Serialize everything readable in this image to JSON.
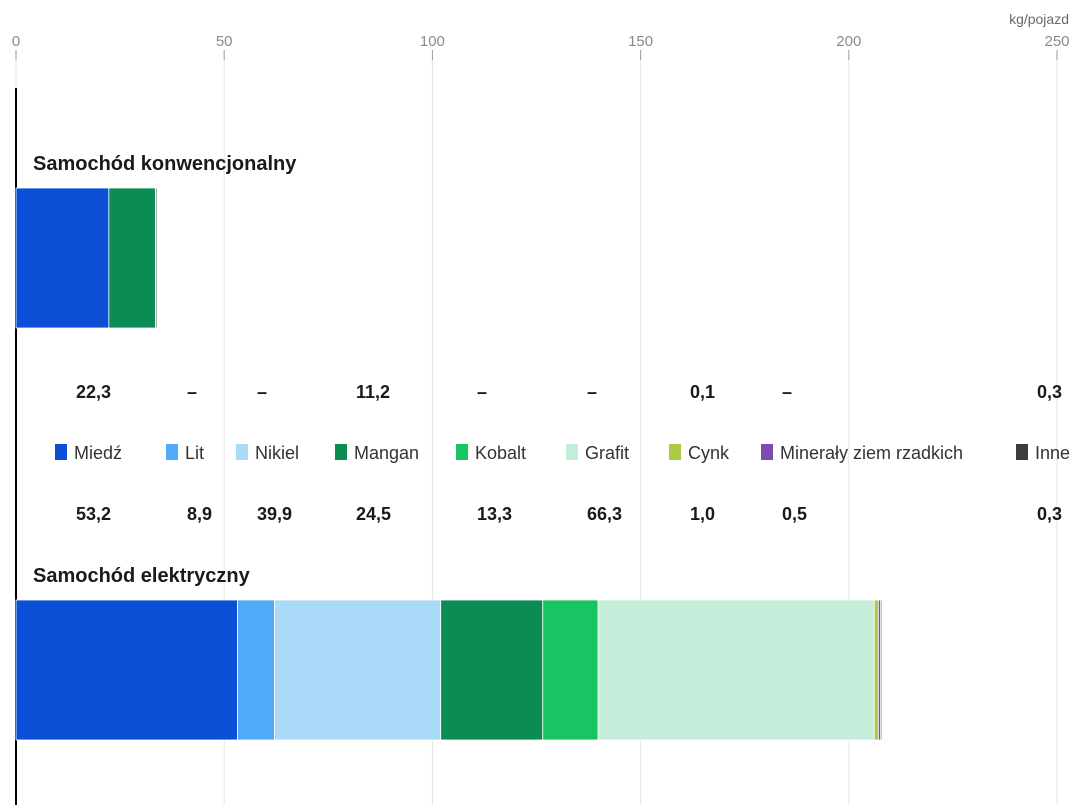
{
  "chart_data": {
    "type": "bar",
    "orientation": "horizontal",
    "stacked": true,
    "unit": "kg/pojazd",
    "xlim": [
      0,
      250
    ],
    "x_ticks": [
      "0",
      "50",
      "100",
      "150",
      "200",
      "250"
    ],
    "grid": true,
    "legend_position": "middle",
    "categories": [
      "Samochód konwencjonalny",
      "Samochód elektryczny"
    ],
    "series": [
      {
        "name": "Miedź",
        "color": "#0b50d6",
        "values": [
          22.3,
          53.2
        ],
        "labels": [
          "22,3",
          "53,2"
        ]
      },
      {
        "name": "Lit",
        "color": "#4fabf7",
        "values": [
          0,
          8.9
        ],
        "labels": [
          "–",
          "8,9"
        ]
      },
      {
        "name": "Nikiel",
        "color": "#a9daf7",
        "values": [
          0,
          39.9
        ],
        "labels": [
          "–",
          "39,9"
        ]
      },
      {
        "name": "Mangan",
        "color": "#0a8c52",
        "values": [
          11.2,
          24.5
        ],
        "labels": [
          "11,2",
          "24,5"
        ]
      },
      {
        "name": "Kobalt",
        "color": "#19c462",
        "values": [
          0,
          13.3
        ],
        "labels": [
          "–",
          "13,3"
        ]
      },
      {
        "name": "Grafit",
        "color": "#c4eed9",
        "values": [
          0,
          66.3
        ],
        "labels": [
          "–",
          "66,3"
        ]
      },
      {
        "name": "Cynk",
        "color": "#a9cc44",
        "values": [
          0.1,
          1.0
        ],
        "labels": [
          "0,1",
          "1,0"
        ]
      },
      {
        "name": "Minerały ziem rzadkich",
        "color": "#7a4cb0",
        "values": [
          0,
          0.5
        ],
        "labels": [
          "–",
          "0,5"
        ]
      },
      {
        "name": "Inne",
        "color": "#3c3c3c",
        "values": [
          0.3,
          0.3
        ],
        "labels": [
          "0,3",
          "0,3"
        ]
      }
    ]
  }
}
